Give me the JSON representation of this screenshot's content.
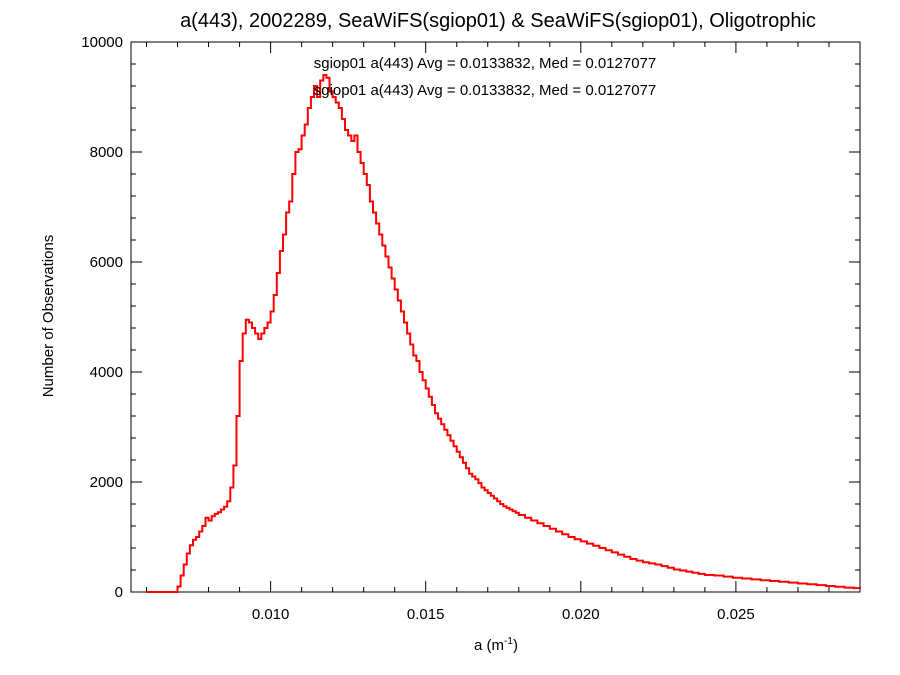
{
  "chart_data": {
    "type": "histogram-step",
    "title": "a(443), 2002289, SeaWiFS(sgiop01) & SeaWiFS(sgiop01), Oligotrophic",
    "xlabel_base": "a (m",
    "xlabel_sup": "-1",
    "xlabel_close": ")",
    "ylabel": "Number of Observations",
    "xlim": [
      0.0055,
      0.029
    ],
    "ylim": [
      0,
      10000
    ],
    "xticks": [
      0.01,
      0.015,
      0.02,
      0.025
    ],
    "xtick_labels": [
      "0.010",
      "0.015",
      "0.020",
      "0.025"
    ],
    "yticks": [
      0,
      2000,
      4000,
      6000,
      8000,
      10000
    ],
    "ytick_labels": [
      "0",
      "2000",
      "4000",
      "6000",
      "8000",
      "10000"
    ],
    "annotations": [
      {
        "text": "sgiop01 a(443) Avg = 0.0133832, Med = 0.0127077",
        "color": "#000000"
      },
      {
        "text": "sgiop01 a(443) Avg = 0.0133832, Med = 0.0127077",
        "color": "#ff0000"
      }
    ],
    "series": [
      {
        "color": "#ff0000",
        "x": [
          0.006,
          0.0065,
          0.0068,
          0.007,
          0.0071,
          0.0072,
          0.0073,
          0.0074,
          0.0075,
          0.0076,
          0.0077,
          0.0078,
          0.0079,
          0.008,
          0.0081,
          0.0082,
          0.0083,
          0.0084,
          0.0085,
          0.0086,
          0.0087,
          0.0088,
          0.0089,
          0.009,
          0.0091,
          0.0092,
          0.0093,
          0.0094,
          0.0095,
          0.0096,
          0.0097,
          0.0098,
          0.0099,
          0.01,
          0.0101,
          0.0102,
          0.0103,
          0.0104,
          0.0105,
          0.0106,
          0.0107,
          0.0108,
          0.0109,
          0.011,
          0.0111,
          0.0112,
          0.0113,
          0.0114,
          0.0115,
          0.0116,
          0.0117,
          0.0118,
          0.0119,
          0.012,
          0.0121,
          0.0122,
          0.0123,
          0.0124,
          0.0125,
          0.0126,
          0.0127,
          0.0128,
          0.0129,
          0.013,
          0.0131,
          0.0132,
          0.0133,
          0.0134,
          0.0135,
          0.0136,
          0.0137,
          0.0138,
          0.0139,
          0.014,
          0.0141,
          0.0142,
          0.0143,
          0.0144,
          0.0145,
          0.0146,
          0.0147,
          0.0148,
          0.0149,
          0.015,
          0.0151,
          0.0152,
          0.0153,
          0.0154,
          0.0155,
          0.0156,
          0.0157,
          0.0158,
          0.0159,
          0.016,
          0.0161,
          0.0162,
          0.0163,
          0.0164,
          0.0165,
          0.0166,
          0.0167,
          0.0168,
          0.0169,
          0.017,
          0.0171,
          0.0172,
          0.0173,
          0.0174,
          0.0175,
          0.0176,
          0.0177,
          0.0178,
          0.0179,
          0.018,
          0.0182,
          0.0184,
          0.0186,
          0.0188,
          0.019,
          0.0192,
          0.0194,
          0.0196,
          0.0198,
          0.02,
          0.0202,
          0.0204,
          0.0206,
          0.0208,
          0.021,
          0.0212,
          0.0214,
          0.0216,
          0.0218,
          0.022,
          0.0222,
          0.0224,
          0.0226,
          0.0228,
          0.023,
          0.0232,
          0.0234,
          0.0236,
          0.0238,
          0.024,
          0.0243,
          0.0246,
          0.0249,
          0.0252,
          0.0255,
          0.0258,
          0.0261,
          0.0264,
          0.0267,
          0.027,
          0.0273,
          0.0276,
          0.0279,
          0.0282,
          0.0285,
          0.0288,
          0.029
        ],
        "y": [
          0,
          0,
          0,
          100,
          300,
          500,
          700,
          850,
          950,
          1000,
          1100,
          1200,
          1350,
          1300,
          1380,
          1420,
          1450,
          1500,
          1550,
          1650,
          1900,
          2300,
          3200,
          4200,
          4700,
          4950,
          4900,
          4800,
          4700,
          4600,
          4700,
          4800,
          4900,
          5100,
          5400,
          5800,
          6200,
          6500,
          6900,
          7100,
          7600,
          8000,
          8050,
          8300,
          8500,
          8800,
          9000,
          9200,
          9000,
          9300,
          9400,
          9350,
          9100,
          9000,
          8900,
          8800,
          8600,
          8400,
          8300,
          8200,
          8300,
          8000,
          7800,
          7600,
          7400,
          7100,
          6900,
          6700,
          6500,
          6300,
          6100,
          5900,
          5700,
          5500,
          5300,
          5100,
          4900,
          4700,
          4500,
          4300,
          4200,
          4000,
          3850,
          3700,
          3550,
          3400,
          3250,
          3150,
          3050,
          2950,
          2850,
          2750,
          2650,
          2550,
          2450,
          2350,
          2250,
          2150,
          2100,
          2050,
          1980,
          1900,
          1850,
          1800,
          1750,
          1700,
          1650,
          1600,
          1560,
          1530,
          1500,
          1470,
          1440,
          1400,
          1350,
          1300,
          1250,
          1200,
          1150,
          1100,
          1050,
          1000,
          960,
          920,
          880,
          840,
          800,
          760,
          720,
          680,
          640,
          600,
          570,
          540,
          520,
          500,
          470,
          440,
          410,
          390,
          370,
          350,
          330,
          310,
          300,
          280,
          260,
          245,
          230,
          215,
          200,
          185,
          170,
          155,
          140,
          125,
          110,
          95,
          80,
          70,
          60
        ],
        "step": 0.0001
      }
    ]
  }
}
